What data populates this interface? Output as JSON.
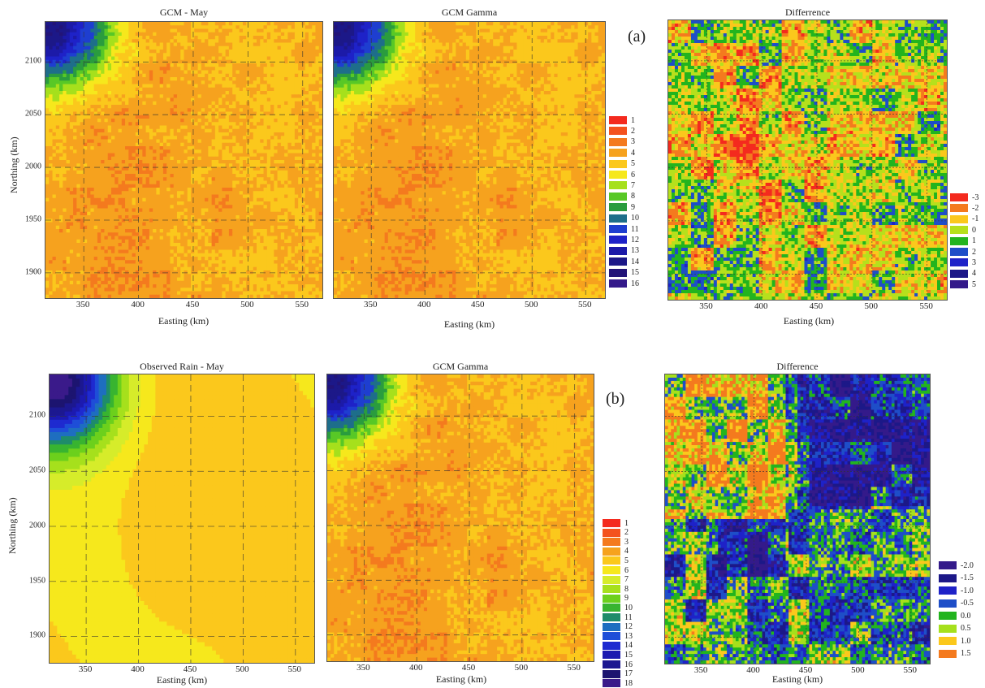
{
  "panel_tags": {
    "a": "(a)",
    "b": "(b)"
  },
  "chart_data": [
    {
      "type": "heatmap",
      "id": "a1",
      "title": "GCM - May",
      "xlabel": "Easting (km)",
      "ylabel": "Northing (km)",
      "xlim": [
        315,
        568
      ],
      "ylim": [
        1876,
        2138
      ],
      "xticks": [
        "350",
        "400",
        "450",
        "500",
        "550"
      ],
      "yticks": [
        "1900",
        "1950",
        "2000",
        "2050",
        "2100"
      ],
      "grid": true
    },
    {
      "type": "heatmap",
      "id": "a2",
      "title": "GCM Gamma",
      "xlabel": "Easting (km)",
      "ylabel": "",
      "xlim": [
        315,
        568
      ],
      "ylim": [
        1876,
        2138
      ],
      "xticks": [
        "350",
        "400",
        "450",
        "500",
        "550"
      ],
      "yticks": [],
      "grid": true,
      "legend": {
        "placement": "right",
        "labels": [
          "1",
          "2",
          "3",
          "4",
          "5",
          "6",
          "7",
          "8",
          "9",
          "10",
          "11",
          "12",
          "13",
          "14",
          "15",
          "16"
        ],
        "colors": [
          "#f42a1e",
          "#f4521e",
          "#f47a1e",
          "#f6a21e",
          "#fbc81c",
          "#f6e81c",
          "#a6e01c",
          "#58c826",
          "#2a9c3e",
          "#1e6e8a",
          "#1e3ed0",
          "#1e22c8",
          "#1c1aa8",
          "#1c1888",
          "#221478",
          "#341a8a"
        ]
      }
    },
    {
      "type": "heatmap",
      "id": "a3",
      "title": "Differrence",
      "xlabel": "Easting (km)",
      "ylabel": "",
      "xlim": [
        315,
        568
      ],
      "ylim": [
        1876,
        2138
      ],
      "xticks": [
        "350",
        "400",
        "450",
        "500",
        "550"
      ],
      "yticks": [],
      "grid": true,
      "legend": {
        "placement": "right",
        "labels": [
          "-3",
          "-2",
          "-1",
          "0",
          "1",
          "2",
          "3",
          "4",
          "5"
        ],
        "colors": [
          "#f42a1e",
          "#f47a1e",
          "#fbc81c",
          "#b6e01c",
          "#22b41e",
          "#1e4ec8",
          "#1e22c8",
          "#1c1888",
          "#341a8a"
        ]
      }
    },
    {
      "type": "heatmap",
      "id": "b1",
      "title": "Observed Rain - May",
      "xlabel": "Easting (km)",
      "ylabel": "Northing (km)",
      "xlim": [
        315,
        568
      ],
      "ylim": [
        1876,
        2138
      ],
      "xticks": [
        "350",
        "400",
        "450",
        "500",
        "550"
      ],
      "yticks": [
        "1900",
        "1950",
        "2000",
        "2050",
        "2100"
      ],
      "grid": true
    },
    {
      "type": "heatmap",
      "id": "b2",
      "title": "GCM Gamma",
      "xlabel": "Easting (km)",
      "ylabel": "",
      "xlim": [
        315,
        568
      ],
      "ylim": [
        1876,
        2138
      ],
      "xticks": [
        "350",
        "400",
        "450",
        "500",
        "550"
      ],
      "yticks": [],
      "grid": true,
      "legend": {
        "placement": "right",
        "labels": [
          "1",
          "2",
          "3",
          "4",
          "5",
          "6",
          "7",
          "8",
          "9",
          "10",
          "11",
          "12",
          "13",
          "14",
          "15",
          "16",
          "17",
          "18"
        ],
        "colors": [
          "#f42a1e",
          "#f4521e",
          "#f47a1e",
          "#f6a21e",
          "#fbc81c",
          "#f6e81c",
          "#d6ec2a",
          "#a6e01c",
          "#6cd01c",
          "#38b430",
          "#1e8c6a",
          "#1e6ec0",
          "#1e4ed8",
          "#1e2ad0",
          "#1c1ab0",
          "#1c1890",
          "#1c1470",
          "#3a1a8a"
        ]
      }
    },
    {
      "type": "heatmap",
      "id": "b3",
      "title": "Difference",
      "xlabel": "Easting (km)",
      "ylabel": "",
      "xlim": [
        315,
        568
      ],
      "ylim": [
        1876,
        2138
      ],
      "xticks": [
        "350",
        "400",
        "450",
        "500",
        "550"
      ],
      "yticks": [],
      "grid": true,
      "legend": {
        "placement": "right",
        "labels": [
          "-2.0",
          "-1.5",
          "-1.0",
          "-0.5",
          "0.0",
          "0.5",
          "1.0",
          "1.5"
        ],
        "colors": [
          "#341a8a",
          "#1c1888",
          "#1e22c8",
          "#1e4ec8",
          "#22b41e",
          "#a6e01c",
          "#fbc81c",
          "#f47a1e"
        ]
      }
    }
  ]
}
